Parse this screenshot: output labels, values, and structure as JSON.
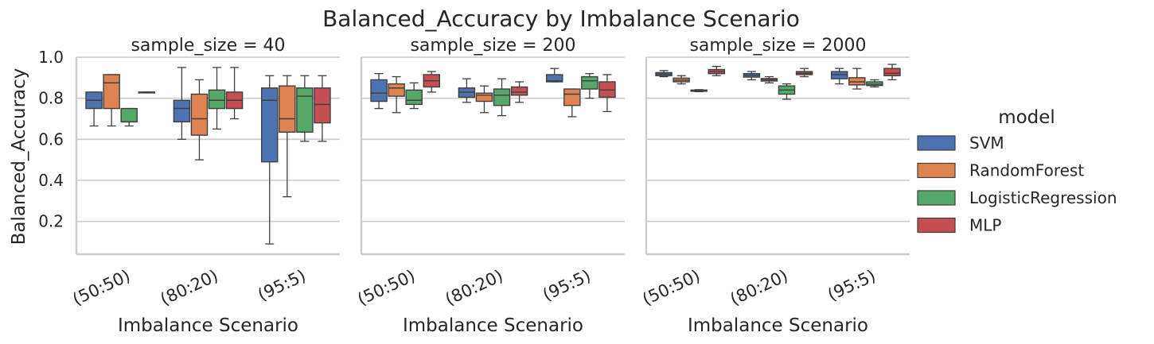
{
  "chart_data": {
    "type": "box",
    "title": "Balanced_Accuracy by Imbalance Scenario",
    "xlabel": "Imbalance Scenario",
    "ylabel": "Balanced_Accuracy",
    "ylim": [
      0.04,
      1.0
    ],
    "yticks": [
      0.2,
      0.4,
      0.6,
      0.8,
      1.0
    ],
    "grid": "horizontal",
    "legend_title": "model",
    "legend_position": "right",
    "categories": [
      "(50:50)",
      "(80:20)",
      "(95:5)"
    ],
    "series_names": [
      "SVM",
      "RandomForest",
      "LogisticRegression",
      "MLP"
    ],
    "colors": {
      "SVM": "#4c72b0",
      "RandomForest": "#dd8452",
      "LogisticRegression": "#55a868",
      "MLP": "#c44e52",
      "grid": "#cccccc",
      "edge": "#3f3f3f"
    },
    "facet_field": "sample_size",
    "panels": [
      {
        "title": "sample_size = 40",
        "boxes": {
          "SVM": [
            {
              "min": 0.665,
              "q1": 0.75,
              "median": 0.79,
              "q3": 0.83,
              "max": 0.83
            },
            {
              "min": 0.6,
              "q1": 0.685,
              "median": 0.75,
              "q3": 0.79,
              "max": 0.95
            },
            {
              "min": 0.09,
              "q1": 0.49,
              "median": 0.79,
              "q3": 0.85,
              "max": 0.91
            }
          ],
          "RandomForest": [
            {
              "min": 0.665,
              "q1": 0.75,
              "median": 0.875,
              "q3": 0.915,
              "max": 0.915
            },
            {
              "min": 0.5,
              "q1": 0.62,
              "median": 0.7,
              "q3": 0.82,
              "max": 0.89
            },
            {
              "min": 0.32,
              "q1": 0.635,
              "median": 0.7,
              "q3": 0.86,
              "max": 0.91
            }
          ],
          "LogisticRegression": [
            {
              "min": 0.665,
              "q1": 0.685,
              "median": 0.685,
              "q3": 0.75,
              "max": 0.75
            },
            {
              "min": 0.65,
              "q1": 0.75,
              "median": 0.79,
              "q3": 0.84,
              "max": 0.95
            },
            {
              "min": 0.59,
              "q1": 0.635,
              "median": 0.81,
              "q3": 0.85,
              "max": 0.91
            }
          ],
          "MLP": [
            {
              "min": 0.83,
              "q1": 0.83,
              "median": 0.83,
              "q3": 0.83,
              "max": 0.83
            },
            {
              "min": 0.7,
              "q1": 0.75,
              "median": 0.79,
              "q3": 0.83,
              "max": 0.95
            },
            {
              "min": 0.59,
              "q1": 0.68,
              "median": 0.77,
              "q3": 0.85,
              "max": 0.91
            }
          ]
        }
      },
      {
        "title": "sample_size = 200",
        "boxes": {
          "SVM": [
            {
              "min": 0.75,
              "q1": 0.785,
              "median": 0.825,
              "q3": 0.89,
              "max": 0.92
            },
            {
              "min": 0.78,
              "q1": 0.805,
              "median": 0.83,
              "q3": 0.85,
              "max": 0.895
            },
            {
              "min": 0.88,
              "q1": 0.88,
              "median": 0.885,
              "q3": 0.915,
              "max": 0.945
            }
          ],
          "RandomForest": [
            {
              "min": 0.73,
              "q1": 0.81,
              "median": 0.85,
              "q3": 0.87,
              "max": 0.905
            },
            {
              "min": 0.73,
              "q1": 0.785,
              "median": 0.815,
              "q3": 0.825,
              "max": 0.86
            },
            {
              "min": 0.71,
              "q1": 0.765,
              "median": 0.82,
              "q3": 0.845,
              "max": 0.845
            }
          ],
          "LogisticRegression": [
            {
              "min": 0.75,
              "q1": 0.77,
              "median": 0.79,
              "q3": 0.84,
              "max": 0.875
            },
            {
              "min": 0.715,
              "q1": 0.765,
              "median": 0.815,
              "q3": 0.845,
              "max": 0.895
            },
            {
              "min": 0.8,
              "q1": 0.845,
              "median": 0.885,
              "q3": 0.905,
              "max": 0.92
            }
          ],
          "MLP": [
            {
              "min": 0.83,
              "q1": 0.855,
              "median": 0.885,
              "q3": 0.915,
              "max": 0.93
            },
            {
              "min": 0.78,
              "q1": 0.815,
              "median": 0.83,
              "q3": 0.855,
              "max": 0.88
            },
            {
              "min": 0.735,
              "q1": 0.805,
              "median": 0.84,
              "q3": 0.88,
              "max": 0.915
            }
          ]
        }
      },
      {
        "title": "sample_size = 2000",
        "boxes": {
          "SVM": [
            {
              "min": 0.905,
              "q1": 0.91,
              "median": 0.918,
              "q3": 0.925,
              "max": 0.935
            },
            {
              "min": 0.89,
              "q1": 0.903,
              "median": 0.912,
              "q3": 0.92,
              "max": 0.93
            },
            {
              "min": 0.87,
              "q1": 0.895,
              "median": 0.915,
              "q3": 0.93,
              "max": 0.945
            }
          ],
          "RandomForest": [
            {
              "min": 0.87,
              "q1": 0.88,
              "median": 0.888,
              "q3": 0.898,
              "max": 0.91
            },
            {
              "min": 0.875,
              "q1": 0.884,
              "median": 0.89,
              "q3": 0.896,
              "max": 0.905
            },
            {
              "min": 0.845,
              "q1": 0.865,
              "median": 0.88,
              "q3": 0.9,
              "max": 0.945
            }
          ],
          "LogisticRegression": [
            {
              "min": 0.832,
              "q1": 0.834,
              "median": 0.836,
              "q3": 0.84,
              "max": 0.842
            },
            {
              "min": 0.795,
              "q1": 0.82,
              "median": 0.84,
              "q3": 0.86,
              "max": 0.87
            },
            {
              "min": 0.855,
              "q1": 0.862,
              "median": 0.868,
              "q3": 0.88,
              "max": 0.89
            }
          ],
          "MLP": [
            {
              "min": 0.91,
              "q1": 0.92,
              "median": 0.93,
              "q3": 0.94,
              "max": 0.955
            },
            {
              "min": 0.905,
              "q1": 0.915,
              "median": 0.922,
              "q3": 0.93,
              "max": 0.945
            },
            {
              "min": 0.89,
              "q1": 0.91,
              "median": 0.922,
              "q3": 0.945,
              "max": 0.965
            }
          ]
        }
      }
    ]
  }
}
